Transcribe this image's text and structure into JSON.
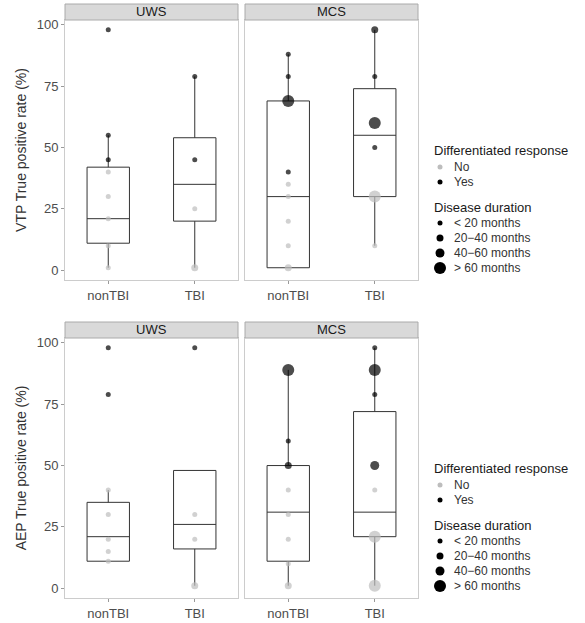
{
  "chart_data": [
    {
      "type": "box",
      "ylabel": "VTP True positive rate (%)",
      "ylim": [
        -4,
        102
      ],
      "yticks": [
        0,
        25,
        50,
        75,
        100
      ],
      "grid": false,
      "facets": [
        "UWS",
        "MCS"
      ],
      "categories": [
        "nonTBI",
        "TBI"
      ],
      "boxes": [
        {
          "facet": "UWS",
          "category": "nonTBI",
          "lowerfence": 1,
          "q1": 11,
          "median": 21,
          "q3": 42,
          "upperfence": 55
        },
        {
          "facet": "UWS",
          "category": "TBI",
          "lowerfence": 1,
          "q1": 20,
          "median": 35,
          "q3": 54,
          "upperfence": 79
        },
        {
          "facet": "MCS",
          "category": "nonTBI",
          "lowerfence": 1,
          "q1": 1,
          "median": 30,
          "q3": 69,
          "upperfence": 88
        },
        {
          "facet": "MCS",
          "category": "TBI",
          "lowerfence": 10,
          "q1": 30,
          "median": 55,
          "q3": 74,
          "upperfence": 98
        }
      ],
      "points": [
        {
          "facet": "UWS",
          "category": "nonTBI",
          "value": 98,
          "response": "Yes",
          "duration": "< 20 months"
        },
        {
          "facet": "UWS",
          "category": "nonTBI",
          "value": 55,
          "response": "Yes",
          "duration": "< 20 months"
        },
        {
          "facet": "UWS",
          "category": "nonTBI",
          "value": 45,
          "response": "Yes",
          "duration": "< 20 months"
        },
        {
          "facet": "UWS",
          "category": "nonTBI",
          "value": 40,
          "response": "No",
          "duration": "< 20 months"
        },
        {
          "facet": "UWS",
          "category": "nonTBI",
          "value": 30,
          "response": "No",
          "duration": "< 20 months"
        },
        {
          "facet": "UWS",
          "category": "nonTBI",
          "value": 21,
          "response": "No",
          "duration": "< 20 months"
        },
        {
          "facet": "UWS",
          "category": "nonTBI",
          "value": 10,
          "response": "No",
          "duration": "< 20 months"
        },
        {
          "facet": "UWS",
          "category": "nonTBI",
          "value": 1,
          "response": "No",
          "duration": "< 20 months"
        },
        {
          "facet": "UWS",
          "category": "TBI",
          "value": 79,
          "response": "Yes",
          "duration": "< 20 months"
        },
        {
          "facet": "UWS",
          "category": "TBI",
          "value": 45,
          "response": "Yes",
          "duration": "< 20 months"
        },
        {
          "facet": "UWS",
          "category": "TBI",
          "value": 25,
          "response": "No",
          "duration": "< 20 months"
        },
        {
          "facet": "UWS",
          "category": "TBI",
          "value": 1,
          "response": "No",
          "duration": "20−40 months"
        },
        {
          "facet": "MCS",
          "category": "nonTBI",
          "value": 88,
          "response": "Yes",
          "duration": "< 20 months"
        },
        {
          "facet": "MCS",
          "category": "nonTBI",
          "value": 79,
          "response": "Yes",
          "duration": "< 20 months"
        },
        {
          "facet": "MCS",
          "category": "nonTBI",
          "value": 69,
          "response": "Yes",
          "duration": "> 60 months"
        },
        {
          "facet": "MCS",
          "category": "nonTBI",
          "value": 40,
          "response": "Yes",
          "duration": "< 20 months"
        },
        {
          "facet": "MCS",
          "category": "nonTBI",
          "value": 35,
          "response": "No",
          "duration": "< 20 months"
        },
        {
          "facet": "MCS",
          "category": "nonTBI",
          "value": 30,
          "response": "No",
          "duration": "< 20 months"
        },
        {
          "facet": "MCS",
          "category": "nonTBI",
          "value": 20,
          "response": "No",
          "duration": "< 20 months"
        },
        {
          "facet": "MCS",
          "category": "nonTBI",
          "value": 10,
          "response": "No",
          "duration": "< 20 months"
        },
        {
          "facet": "MCS",
          "category": "nonTBI",
          "value": 1,
          "response": "No",
          "duration": "20−40 months"
        },
        {
          "facet": "MCS",
          "category": "TBI",
          "value": 98,
          "response": "Yes",
          "duration": "20−40 months"
        },
        {
          "facet": "MCS",
          "category": "TBI",
          "value": 79,
          "response": "Yes",
          "duration": "< 20 months"
        },
        {
          "facet": "MCS",
          "category": "TBI",
          "value": 60,
          "response": "Yes",
          "duration": "> 60 months"
        },
        {
          "facet": "MCS",
          "category": "TBI",
          "value": 50,
          "response": "Yes",
          "duration": "< 20 months"
        },
        {
          "facet": "MCS",
          "category": "TBI",
          "value": 30,
          "response": "No",
          "duration": "> 60 months"
        },
        {
          "facet": "MCS",
          "category": "TBI",
          "value": 10,
          "response": "No",
          "duration": "< 20 months"
        }
      ],
      "color_legend": {
        "title": "Differentiated response",
        "levels": [
          "No",
          "Yes"
        ],
        "colors": [
          "#bdbdbd",
          "#000000"
        ]
      },
      "size_legend": {
        "title": "Disease duration",
        "levels": [
          "< 20 months",
          "20−40 months",
          "40−60 months",
          "> 60 months"
        ]
      }
    },
    {
      "type": "box",
      "ylabel": "AEP True positive rate (%)",
      "ylim": [
        -4,
        102
      ],
      "yticks": [
        0,
        25,
        50,
        75,
        100
      ],
      "grid": false,
      "facets": [
        "UWS",
        "MCS"
      ],
      "categories": [
        "nonTBI",
        "TBI"
      ],
      "boxes": [
        {
          "facet": "UWS",
          "category": "nonTBI",
          "lowerfence": 11,
          "q1": 11,
          "median": 21,
          "q3": 35,
          "upperfence": 40
        },
        {
          "facet": "UWS",
          "category": "TBI",
          "lowerfence": 1,
          "q1": 16,
          "median": 26,
          "q3": 48,
          "upperfence": 48
        },
        {
          "facet": "MCS",
          "category": "nonTBI",
          "lowerfence": 1,
          "q1": 11,
          "median": 31,
          "q3": 50,
          "upperfence": 89
        },
        {
          "facet": "MCS",
          "category": "TBI",
          "lowerfence": 1,
          "q1": 21,
          "median": 31,
          "q3": 72,
          "upperfence": 98
        }
      ],
      "points": [
        {
          "facet": "UWS",
          "category": "nonTBI",
          "value": 98,
          "response": "Yes",
          "duration": "< 20 months"
        },
        {
          "facet": "UWS",
          "category": "nonTBI",
          "value": 79,
          "response": "Yes",
          "duration": "< 20 months"
        },
        {
          "facet": "UWS",
          "category": "nonTBI",
          "value": 40,
          "response": "No",
          "duration": "< 20 months"
        },
        {
          "facet": "UWS",
          "category": "nonTBI",
          "value": 30,
          "response": "No",
          "duration": "< 20 months"
        },
        {
          "facet": "UWS",
          "category": "nonTBI",
          "value": 20,
          "response": "No",
          "duration": "< 20 months"
        },
        {
          "facet": "UWS",
          "category": "nonTBI",
          "value": 15,
          "response": "No",
          "duration": "< 20 months"
        },
        {
          "facet": "UWS",
          "category": "nonTBI",
          "value": 11,
          "response": "No",
          "duration": "< 20 months"
        },
        {
          "facet": "UWS",
          "category": "TBI",
          "value": 98,
          "response": "Yes",
          "duration": "< 20 months"
        },
        {
          "facet": "UWS",
          "category": "TBI",
          "value": 30,
          "response": "No",
          "duration": "< 20 months"
        },
        {
          "facet": "UWS",
          "category": "TBI",
          "value": 20,
          "response": "No",
          "duration": "< 20 months"
        },
        {
          "facet": "UWS",
          "category": "TBI",
          "value": 1,
          "response": "No",
          "duration": "20−40 months"
        },
        {
          "facet": "MCS",
          "category": "nonTBI",
          "value": 89,
          "response": "Yes",
          "duration": "> 60 months"
        },
        {
          "facet": "MCS",
          "category": "nonTBI",
          "value": 60,
          "response": "Yes",
          "duration": "< 20 months"
        },
        {
          "facet": "MCS",
          "category": "nonTBI",
          "value": 50,
          "response": "Yes",
          "duration": "20−40 months"
        },
        {
          "facet": "MCS",
          "category": "nonTBI",
          "value": 40,
          "response": "No",
          "duration": "< 20 months"
        },
        {
          "facet": "MCS",
          "category": "nonTBI",
          "value": 30,
          "response": "No",
          "duration": "< 20 months"
        },
        {
          "facet": "MCS",
          "category": "nonTBI",
          "value": 20,
          "response": "No",
          "duration": "< 20 months"
        },
        {
          "facet": "MCS",
          "category": "nonTBI",
          "value": 10,
          "response": "No",
          "duration": "< 20 months"
        },
        {
          "facet": "MCS",
          "category": "nonTBI",
          "value": 1,
          "response": "No",
          "duration": "20−40 months"
        },
        {
          "facet": "MCS",
          "category": "TBI",
          "value": 98,
          "response": "Yes",
          "duration": "< 20 months"
        },
        {
          "facet": "MCS",
          "category": "TBI",
          "value": 89,
          "response": "Yes",
          "duration": "> 60 months"
        },
        {
          "facet": "MCS",
          "category": "TBI",
          "value": 79,
          "response": "Yes",
          "duration": "< 20 months"
        },
        {
          "facet": "MCS",
          "category": "TBI",
          "value": 50,
          "response": "Yes",
          "duration": "40−60 months"
        },
        {
          "facet": "MCS",
          "category": "TBI",
          "value": 40,
          "response": "No",
          "duration": "< 20 months"
        },
        {
          "facet": "MCS",
          "category": "TBI",
          "value": 21,
          "response": "No",
          "duration": "> 60 months"
        },
        {
          "facet": "MCS",
          "category": "TBI",
          "value": 1,
          "response": "No",
          "duration": "> 60 months"
        }
      ],
      "color_legend": {
        "title": "Differentiated response",
        "levels": [
          "No",
          "Yes"
        ],
        "colors": [
          "#bdbdbd",
          "#000000"
        ]
      },
      "size_legend": {
        "title": "Disease duration",
        "levels": [
          "< 20 months",
          "20−40 months",
          "40−60 months",
          "> 60 months"
        ]
      }
    }
  ]
}
